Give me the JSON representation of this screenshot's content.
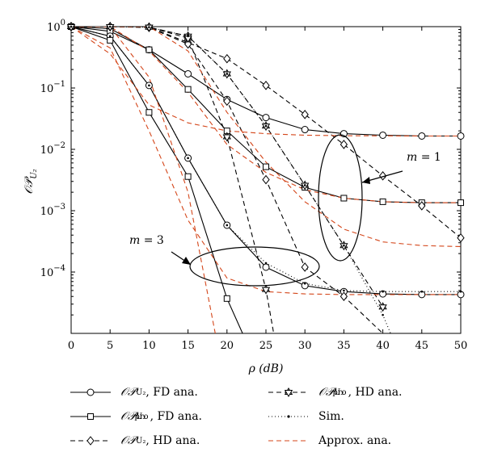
{
  "chart_data": {
    "type": "line",
    "xlabel": "ρ (dB)",
    "ylabel": "𝒪𝒫",
    "ylabel_sub": "U₂",
    "xlim": [
      0,
      50
    ],
    "ylim": [
      1e-05,
      1
    ],
    "yscale": "log",
    "x_ticks": [
      0,
      5,
      10,
      15,
      20,
      25,
      30,
      35,
      40,
      45,
      50
    ],
    "y_tick_labels": [
      {
        "value": 1,
        "base": "10",
        "exp": "0"
      },
      {
        "value": 0.1,
        "base": "10",
        "exp": "−1"
      },
      {
        "value": 0.01,
        "base": "10",
        "exp": "−2"
      },
      {
        "value": 0.001,
        "base": "10",
        "exp": "−3"
      },
      {
        "value": 0.0001,
        "base": "10",
        "exp": "−4"
      }
    ],
    "annotations": [
      {
        "text": "m = 1",
        "x": 41.5,
        "y": 0.006
      },
      {
        "text": "m = 3",
        "x": 7.5,
        "y": 0.00055
      }
    ],
    "series": [
      {
        "legend": "FD ana.",
        "sym": "𝒪𝒫",
        "sub": "U₂",
        "sup": "",
        "marker": "circle",
        "dash": "",
        "color": "#000000",
        "x": [
          0,
          5,
          10,
          15,
          20,
          25,
          30,
          35,
          40,
          45,
          50
        ],
        "y": [
          1,
          0.93,
          0.42,
          0.17,
          0.065,
          0.033,
          0.021,
          0.018,
          0.017,
          0.0165,
          0.0165
        ]
      },
      {
        "legend": "FD ana.",
        "sym": "𝒪𝒫",
        "sub": "U₂",
        "sup": "pro",
        "marker": "square",
        "dash": "",
        "color": "#000000",
        "x": [
          0,
          5,
          10,
          15,
          20,
          25,
          30,
          35,
          40,
          45,
          50
        ],
        "y": [
          1,
          0.84,
          0.42,
          0.095,
          0.02,
          0.0052,
          0.0024,
          0.0016,
          0.0014,
          0.00135,
          0.00135
        ]
      },
      {
        "legend": "HD ana.",
        "sym": "𝒪𝒫",
        "sub": "U₂",
        "sup": "",
        "marker": "diamond",
        "dash": "6,4",
        "color": "#000000",
        "x": [
          0,
          5,
          10,
          15,
          20,
          25,
          30,
          35,
          40,
          45,
          50
        ],
        "y": [
          1,
          1,
          0.98,
          0.55,
          0.3,
          0.11,
          0.037,
          0.012,
          0.0037,
          0.0012,
          0.00036
        ]
      },
      {
        "legend": "HD ana.",
        "sym": "𝒪𝒫",
        "sub": "U₂",
        "sup": "pro",
        "marker": "star",
        "dash": "6,4",
        "color": "#000000",
        "x": [
          0,
          5,
          10,
          15,
          20,
          25,
          30,
          35,
          40
        ],
        "y": [
          1,
          1,
          0.98,
          0.7,
          0.17,
          0.024,
          0.0026,
          0.00027,
          2.7e-05
        ]
      },
      {
        "legend": "FD ana.",
        "marker": "circle",
        "dash": "",
        "color": "#000000",
        "x": [
          0,
          5,
          10,
          15,
          20,
          25,
          30,
          35,
          40,
          45,
          50
        ],
        "y": [
          1,
          0.7,
          0.11,
          0.0072,
          0.00058,
          0.00012,
          6e-05,
          4.8e-05,
          4.4e-05,
          4.3e-05,
          4.3e-05
        ]
      },
      {
        "legend": "FD ana.",
        "marker": "square",
        "dash": "",
        "color": "#000000",
        "x": [
          0,
          5,
          10,
          15,
          20,
          22
        ],
        "y": [
          1,
          0.6,
          0.04,
          0.0036,
          3.7e-05,
          1e-05
        ]
      },
      {
        "legend": "HD ana.",
        "marker": "diamond",
        "dash": "6,4",
        "color": "#000000",
        "x": [
          0,
          5,
          10,
          15,
          20,
          25,
          30,
          35,
          40,
          45,
          50
        ],
        "y": [
          1,
          1,
          0.97,
          0.52,
          0.061,
          0.0032,
          0.00012,
          4e-05,
          1e-05,
          1e-05,
          1e-05
        ]
      },
      {
        "legend": "HD ana.",
        "marker": "star",
        "dash": "6,4",
        "color": "#000000",
        "x": [
          0,
          5,
          10,
          15,
          20,
          25,
          26
        ],
        "y": [
          1,
          1,
          0.98,
          0.65,
          0.016,
          5.2e-05,
          1e-05
        ]
      },
      {
        "legend": "Sim.",
        "marker": "dot",
        "dash": "1,3",
        "color": "#000000",
        "x": [
          0,
          5,
          10,
          15,
          20,
          25,
          30,
          35,
          40,
          45,
          50
        ],
        "y": [
          1,
          0.7,
          0.11,
          0.0072,
          0.00058,
          0.00014,
          6.5e-05,
          5e-05,
          4.8e-05,
          4.8e-05,
          4.8e-05
        ]
      },
      {
        "legend": "Sim.",
        "marker": "dot",
        "dash": "1,3",
        "color": "#000000",
        "x": [
          0,
          5,
          10,
          15,
          20,
          25,
          30,
          35,
          40,
          41
        ],
        "y": [
          1,
          1,
          0.98,
          0.7,
          0.17,
          0.024,
          0.0026,
          0.00027,
          2e-05,
          1e-05
        ]
      },
      {
        "legend": "Approx. ana.",
        "marker": "none",
        "dash": "6,4",
        "color": "#d4461a",
        "x": [
          0,
          5,
          10,
          15,
          20,
          25,
          30,
          35,
          40,
          45,
          50
        ],
        "y": [
          1,
          0.36,
          0.053,
          0.027,
          0.02,
          0.018,
          0.017,
          0.0167,
          0.0166,
          0.0165,
          0.0165
        ]
      },
      {
        "legend": "Approx. ana.",
        "marker": "none",
        "dash": "6,4",
        "color": "#d4461a",
        "x": [
          0,
          5,
          10,
          15,
          20,
          25,
          30,
          35,
          40,
          45,
          50
        ],
        "y": [
          1,
          1,
          0.4,
          0.085,
          0.012,
          0.0042,
          0.0022,
          0.0016,
          0.0014,
          0.00135,
          0.00135
        ]
      },
      {
        "legend": "Approx. ana.",
        "marker": "none",
        "dash": "6,4",
        "color": "#d4461a",
        "x": [
          0,
          5,
          10,
          15,
          20,
          25,
          30,
          35,
          40,
          45,
          50
        ],
        "y": [
          1,
          1,
          1,
          0.4,
          0.04,
          0.0062,
          0.0014,
          0.0005,
          0.00031,
          0.00027,
          0.00026
        ]
      },
      {
        "legend": "Approx. ana.",
        "marker": "none",
        "dash": "6,4",
        "color": "#d4461a",
        "x": [
          0,
          5,
          10,
          15,
          20,
          25,
          30,
          35,
          40,
          45,
          50
        ],
        "y": [
          1,
          0.45,
          0.02,
          0.0007,
          8e-05,
          4.8e-05,
          4.4e-05,
          4.3e-05,
          4.3e-05,
          4.3e-05,
          4.3e-05
        ]
      },
      {
        "legend": "Approx. ana.",
        "marker": "none",
        "dash": "6,4",
        "color": "#d4461a",
        "x": [
          0,
          5,
          10,
          15,
          18.5
        ],
        "y": [
          1,
          1,
          0.15,
          0.002,
          1e-05
        ]
      }
    ],
    "legend": {
      "placement": "bottom",
      "entries": [
        {
          "sym": "𝒪𝒫",
          "sub": "U₂",
          "sup": "",
          "text": ", FD ana.",
          "marker": "circle",
          "dash": "",
          "color": "#000000"
        },
        {
          "sym": "𝒪𝒫",
          "sub": "U₂",
          "sup": "pro",
          "text": ", FD ana.",
          "marker": "square",
          "dash": "",
          "color": "#000000"
        },
        {
          "sym": "𝒪𝒫",
          "sub": "U₂",
          "sup": "",
          "text": ", HD ana.",
          "marker": "diamond",
          "dash": "6,4",
          "color": "#000000"
        },
        {
          "sym": "𝒪𝒫",
          "sub": "U₂",
          "sup": "pro",
          "text": ", HD ana.",
          "marker": "star",
          "dash": "6,4",
          "color": "#000000"
        },
        {
          "sym": "",
          "sub": "",
          "sup": "",
          "text": "Sim.",
          "marker": "dot",
          "dash": "1,3",
          "color": "#000000"
        },
        {
          "sym": "",
          "sub": "",
          "sup": "",
          "text": "Approx. ana.",
          "marker": "none",
          "dash": "6,4",
          "color": "#d4461a"
        }
      ]
    }
  }
}
